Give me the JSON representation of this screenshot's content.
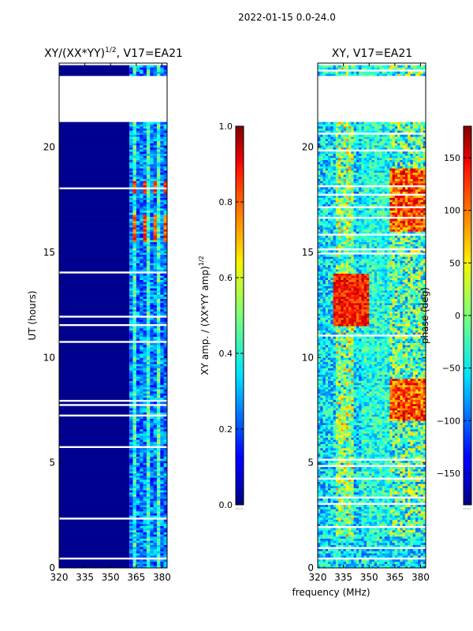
{
  "figure": {
    "suptitle": "2022-01-15 0.0-24.0",
    "xlabel_shared": "frequency (MHz)"
  },
  "chart_data": [
    {
      "type": "heatmap",
      "title": "XY/(XX*YY)¹ᐟ², V17=EA21",
      "title_main": "XY/(XX*YY)",
      "title_sup": "1/2",
      "title_suffix": ", V17=EA21",
      "xlabel": "",
      "ylabel": "UT (hours)",
      "xlim": [
        320,
        383
      ],
      "ylim": [
        0,
        24
      ],
      "xticks": [
        "320",
        "335",
        "350",
        "365",
        "380"
      ],
      "xtick_values": [
        320,
        335,
        350,
        365,
        380
      ],
      "yticks": [
        "0",
        "5",
        "10",
        "15",
        "20"
      ],
      "ytick_values": [
        0,
        5,
        10,
        15,
        20
      ],
      "data_columns_mhz": [
        361,
        383
      ],
      "no_data_columns_mhz": [
        320,
        361
      ],
      "gap_intervals_hours": [
        [
          0.4,
          0.5
        ],
        [
          21.2,
          23.4
        ]
      ],
      "colorbar": {
        "label_main": "XY amp. / (XX*YY amp)",
        "label_sup": "1/2",
        "range": [
          0.0,
          1.0
        ],
        "ticks": [
          "0.0",
          "0.2",
          "0.4",
          "0.6",
          "0.8",
          "1.0"
        ],
        "tick_values": [
          0.0,
          0.2,
          0.4,
          0.6,
          0.8,
          1.0
        ]
      }
    },
    {
      "type": "heatmap",
      "title": "XY, V17=EA21",
      "xlabel": "frequency (MHz)",
      "ylabel": "",
      "xlim": [
        320,
        383
      ],
      "ylim": [
        0,
        24
      ],
      "xticks": [
        "320",
        "335",
        "350",
        "365",
        "380"
      ],
      "xtick_values": [
        320,
        335,
        350,
        365,
        380
      ],
      "yticks": [
        "0",
        "5",
        "10",
        "15",
        "20"
      ],
      "ytick_values": [
        0,
        5,
        10,
        15,
        20
      ],
      "gap_intervals_hours": [
        [
          0.4,
          0.5
        ],
        [
          21.2,
          23.4
        ]
      ],
      "colorbar": {
        "label": "phase (deg)",
        "range": [
          -180,
          180
        ],
        "ticks": [
          "−150",
          "−100",
          "−50",
          "0",
          "50",
          "100",
          "150"
        ],
        "tick_values": [
          -150,
          -100,
          -50,
          0,
          50,
          100,
          150
        ]
      }
    }
  ]
}
